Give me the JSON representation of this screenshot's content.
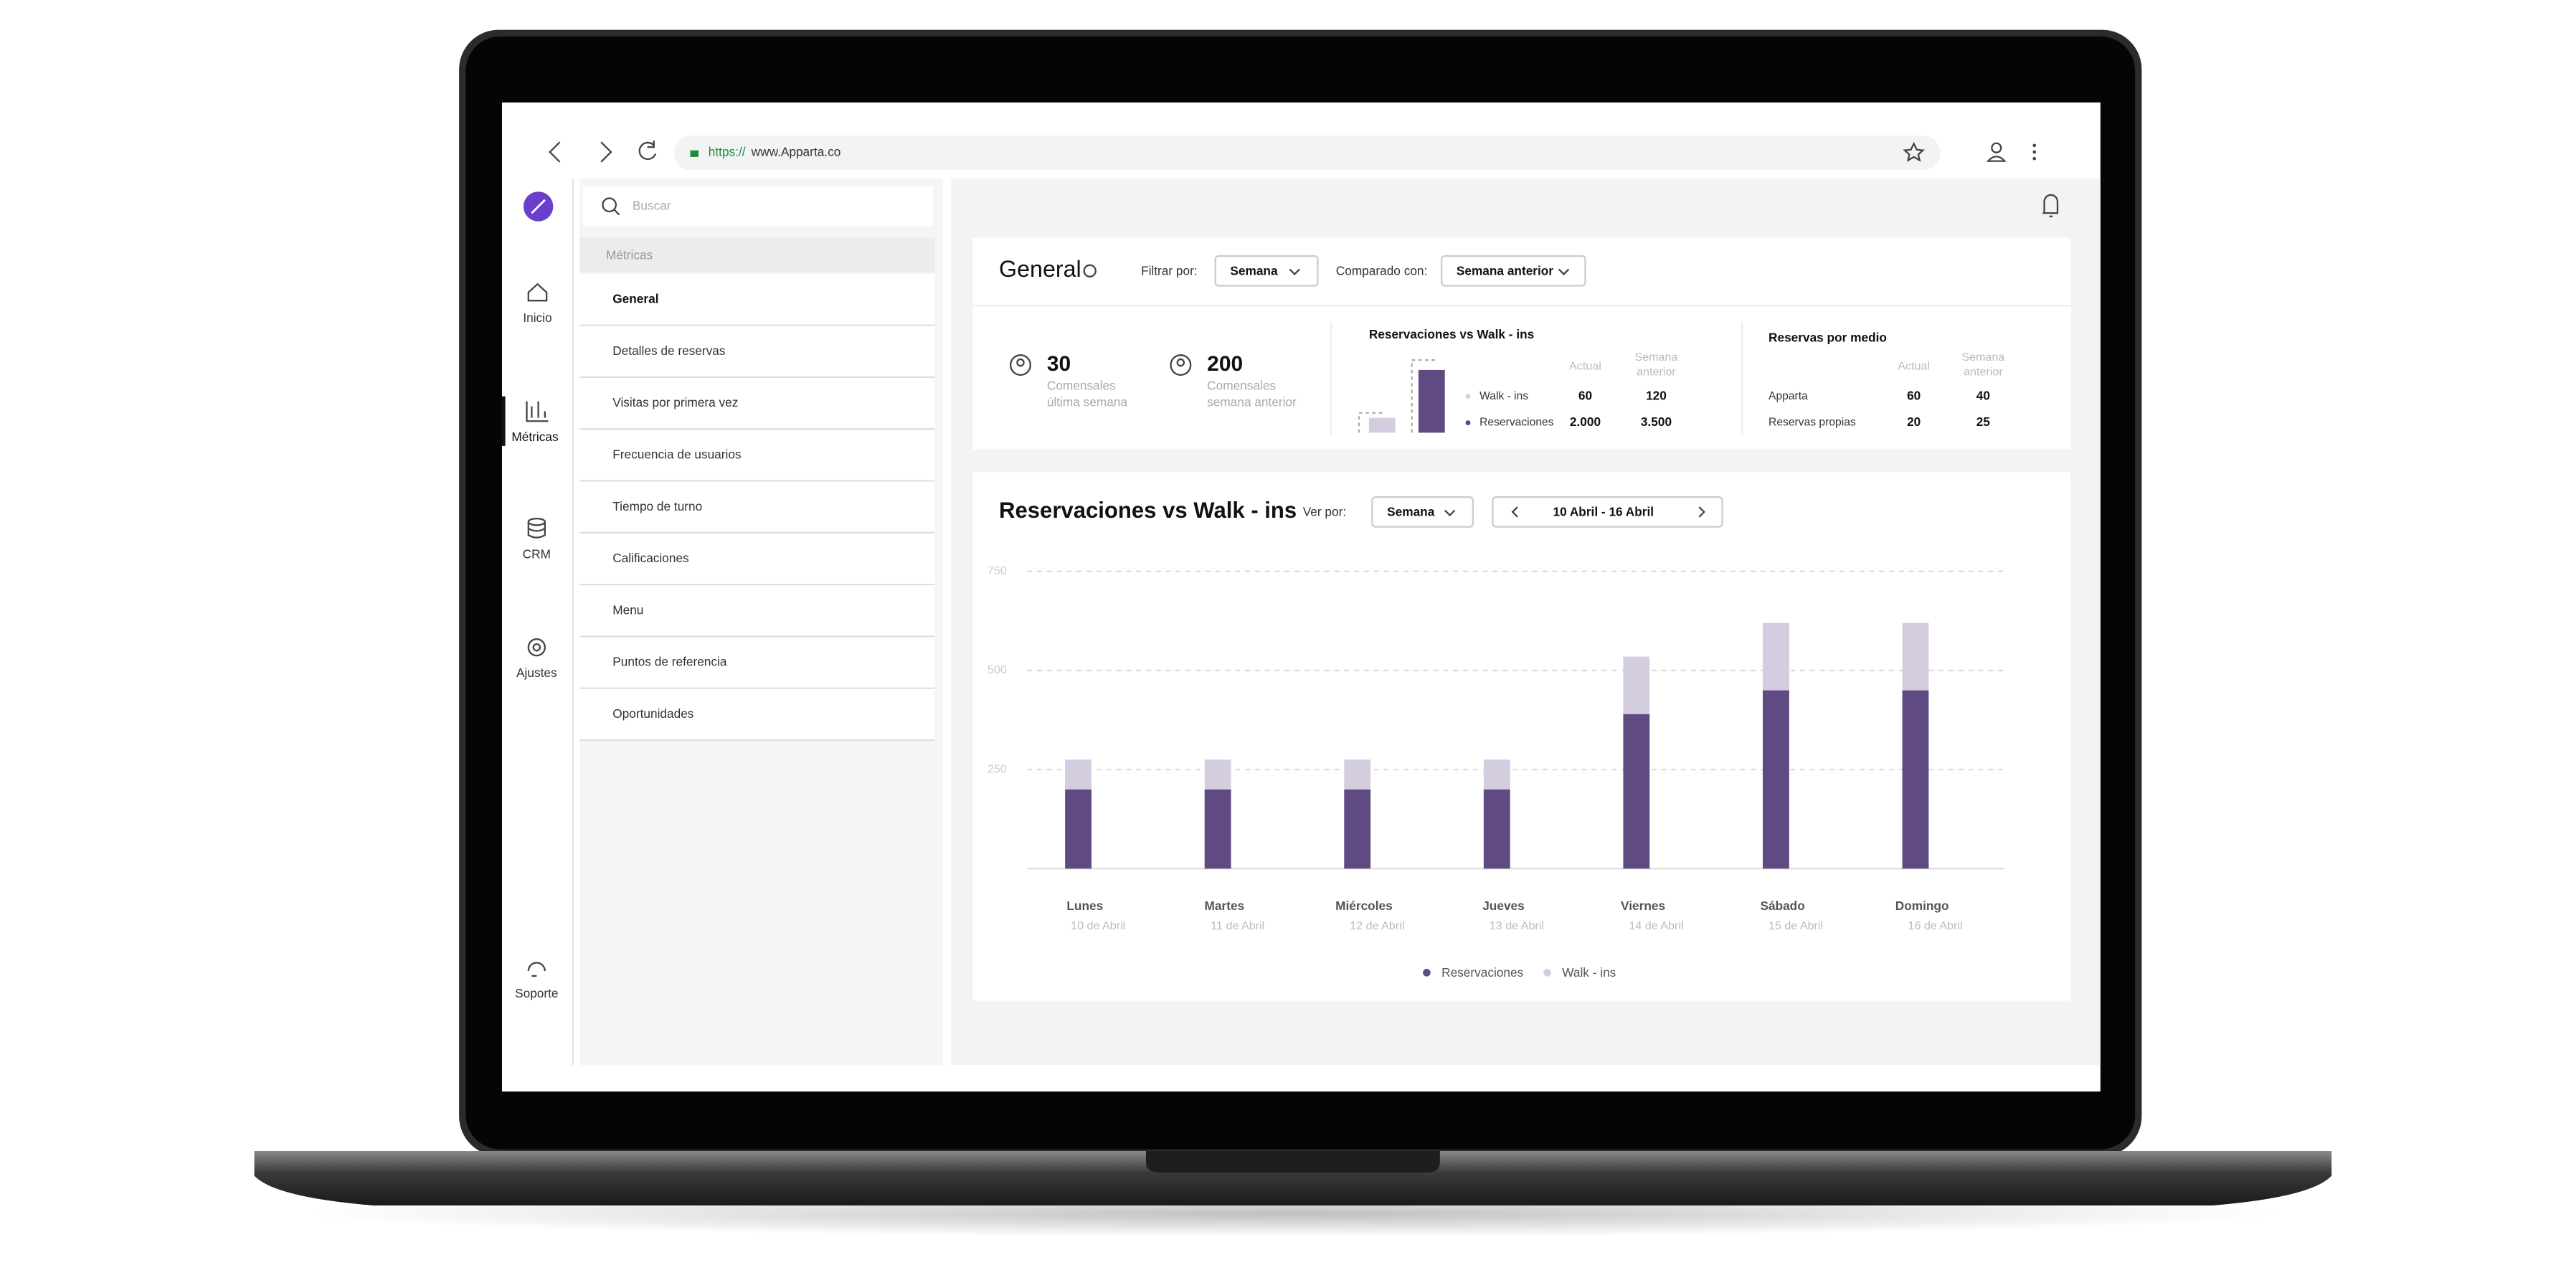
{
  "browser": {
    "url_scheme": "https://",
    "url_host": "www.Apparta.co"
  },
  "rail": {
    "items": [
      "Inicio",
      "Métricas",
      "CRM",
      "Ajustes"
    ],
    "support": "Soporte"
  },
  "menu": {
    "search_placeholder": "Buscar",
    "section": "Métricas",
    "items": [
      "General",
      "Detalles de reservas",
      "Visitas por primera vez",
      "Frecuencia de usuarios",
      "Tiempo de turno",
      "Calificaciones",
      "Menu",
      "Puntos de referencia",
      "Oportunidades"
    ]
  },
  "summary": {
    "title": "General",
    "filter_label": "Filtrar por:",
    "filter_value": "Semana",
    "compare_label": "Comparado con:",
    "compare_value": "Semana anterior",
    "stats": [
      {
        "value": 30,
        "line1": "Comensales",
        "line2": "última semana"
      },
      {
        "value": 200,
        "line1": "Comensales",
        "line2": "semana anterior"
      }
    ],
    "mini_table": {
      "title": "Reservaciones vs Walk - ins",
      "col_actual": "Actual",
      "col_prev_1": "Semana",
      "col_prev_2": "anterior",
      "rows": [
        {
          "label": "Walk - ins",
          "actual": "60",
          "previous": "120"
        },
        {
          "label": "Reservaciones",
          "actual": "2.000",
          "previous": "3.500"
        }
      ]
    },
    "media_table": {
      "title": "Reservas por medio",
      "col_actual": "Actual",
      "col_prev_1": "Semana",
      "col_prev_2": "anterior",
      "rows": [
        {
          "label": "Apparta",
          "actual": "60",
          "previous": "40"
        },
        {
          "label": "Reservas propias",
          "actual": "20",
          "previous": "25"
        }
      ]
    }
  },
  "chart_data": {
    "type": "bar",
    "stacked": true,
    "title": "Reservaciones vs Walk - ins",
    "view_label": "Ver por:",
    "view_value": "Semana",
    "date_range": "10 Abril - 16 Abril",
    "categories": [
      "Lunes",
      "Martes",
      "Miércoles",
      "Jueves",
      "Viernes",
      "Sábado",
      "Domingo"
    ],
    "category_dates": [
      "10 de Abril",
      "11 de Abril",
      "12 de Abril",
      "13 de Abril",
      "14 de Abril",
      "15 de Abril",
      "16 de Abril"
    ],
    "series": [
      {
        "name": "Reservaciones",
        "color": "#5f4a82",
        "values": [
          200,
          200,
          200,
          200,
          390,
          450,
          450
        ]
      },
      {
        "name": "Walk - ins",
        "color": "#d4ccdf",
        "values": [
          75,
          75,
          75,
          75,
          145,
          170,
          170
        ]
      }
    ],
    "ylim": [
      0,
      750
    ],
    "yticks": [
      250,
      500,
      750
    ],
    "grid": true,
    "legend": "bottom"
  }
}
